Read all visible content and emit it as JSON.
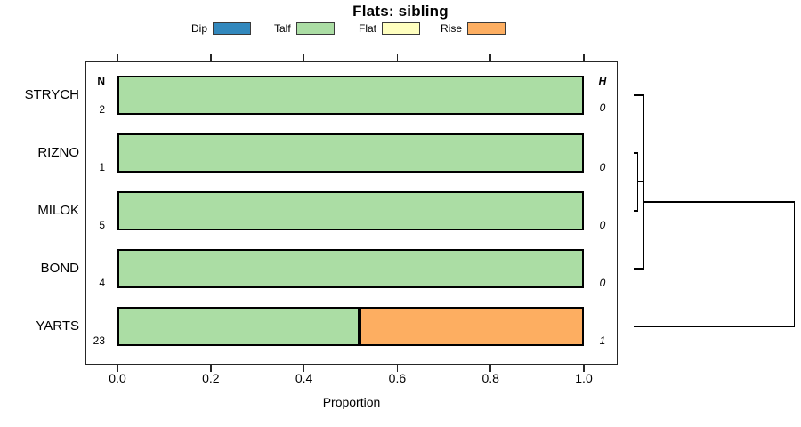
{
  "title": "Flats: sibling",
  "legend": {
    "items": [
      {
        "label": "Dip",
        "color": "#3288bd"
      },
      {
        "label": "Talf",
        "color": "#abdda4"
      },
      {
        "label": "Flat",
        "color": "#ffffbf"
      },
      {
        "label": "Rise",
        "color": "#fdae61"
      }
    ]
  },
  "chart_data": {
    "type": "bar",
    "variant": "horizontal-stacked-proportion",
    "title": "Flats: sibling",
    "xlabel": "Proportion",
    "xlim": [
      0.0,
      1.0
    ],
    "x_ticks": [
      "0.0",
      "0.2",
      "0.4",
      "0.6",
      "0.8",
      "1.0"
    ],
    "categories": [
      "STRYCH",
      "RIZNO",
      "MILOK",
      "BOND",
      "YARTS"
    ],
    "n_header": "N",
    "h_header": "H",
    "n_values": [
      "2",
      "1",
      "5",
      "4",
      "23"
    ],
    "h_values": [
      "0",
      "0",
      "0",
      "0",
      "1"
    ],
    "series": [
      {
        "name": "Dip",
        "color": "#3288bd",
        "values": [
          0,
          0,
          0,
          0,
          0
        ]
      },
      {
        "name": "Talf",
        "color": "#abdda4",
        "values": [
          1,
          1,
          1,
          1,
          0.52
        ]
      },
      {
        "name": "Flat",
        "color": "#ffffbf",
        "values": [
          0,
          0,
          0,
          0,
          0
        ]
      },
      {
        "name": "Rise",
        "color": "#fdae61",
        "values": [
          0,
          0,
          0,
          0,
          0.48
        ]
      }
    ],
    "legend_position": "top",
    "grid": false,
    "dendrogram": {
      "side": "right",
      "topology": "((STRYCH,(RIZNO,MILOK),BOND) at height 0, YARTS) merged at height 1",
      "heights": {
        "inner_cluster": 0,
        "root": 1
      }
    }
  }
}
